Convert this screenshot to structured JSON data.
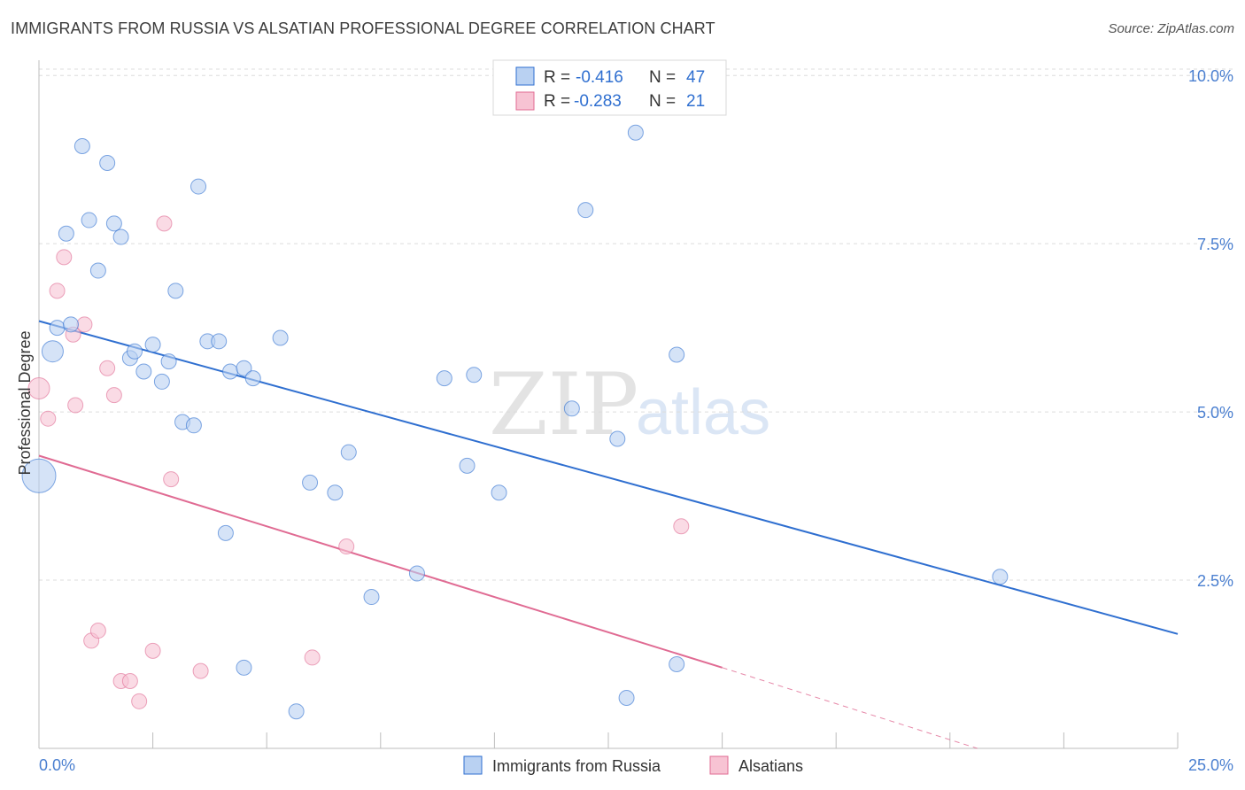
{
  "header": {
    "title": "IMMIGRANTS FROM RUSSIA VS ALSATIAN PROFESSIONAL DEGREE CORRELATION CHART",
    "source": "Source: ZipAtlas.com"
  },
  "watermark": {
    "zip": "ZIP",
    "atlas": "atlas"
  },
  "colors": {
    "russia": "#2f6fd0",
    "russia_fill": "#b9d1f2",
    "alsatian": "#e06b93",
    "alsatian_fill": "#f7c3d3",
    "tick": "#4a7fd0"
  },
  "chart_data": {
    "type": "scatter",
    "title": "IMMIGRANTS FROM RUSSIA VS ALSATIAN PROFESSIONAL DEGREE CORRELATION CHART",
    "xlabel": "",
    "ylabel": "Professional Degree",
    "xlim": [
      0,
      25
    ],
    "ylim": [
      0,
      10.2
    ],
    "x_tick_labels": [
      "0.0%",
      "25.0%"
    ],
    "y_ticks": [
      2.5,
      5.0,
      7.5,
      10.0
    ],
    "y_tick_labels": [
      "2.5%",
      "5.0%",
      "7.5%",
      "10.0%"
    ],
    "legend": [
      {
        "label_r": "R = ",
        "r": "-0.416",
        "label_n": "N = ",
        "n": "47"
      },
      {
        "label_r": "R = ",
        "r": "-0.283",
        "label_n": "N = ",
        "n": "21"
      }
    ],
    "series": [
      {
        "name": "Immigrants from Russia",
        "r": -0.416,
        "n": 47,
        "trend": {
          "x0": 0.0,
          "y0": 6.35,
          "x1": 25.0,
          "y1": 1.7
        },
        "points": [
          {
            "x": 0.0,
            "y": 4.05,
            "s": "xl"
          },
          {
            "x": 0.3,
            "y": 5.9,
            "s": "l"
          },
          {
            "x": 0.4,
            "y": 6.25
          },
          {
            "x": 0.6,
            "y": 7.65
          },
          {
            "x": 0.7,
            "y": 6.3
          },
          {
            "x": 0.95,
            "y": 8.95
          },
          {
            "x": 1.1,
            "y": 7.85
          },
          {
            "x": 1.3,
            "y": 7.1
          },
          {
            "x": 1.5,
            "y": 8.7
          },
          {
            "x": 1.65,
            "y": 7.8
          },
          {
            "x": 1.8,
            "y": 7.6
          },
          {
            "x": 2.0,
            "y": 5.8
          },
          {
            "x": 2.1,
            "y": 5.9
          },
          {
            "x": 2.3,
            "y": 5.6
          },
          {
            "x": 2.5,
            "y": 6.0
          },
          {
            "x": 2.7,
            "y": 5.45
          },
          {
            "x": 2.85,
            "y": 5.75
          },
          {
            "x": 3.0,
            "y": 6.8
          },
          {
            "x": 3.15,
            "y": 4.85
          },
          {
            "x": 3.4,
            "y": 4.8
          },
          {
            "x": 3.5,
            "y": 8.35
          },
          {
            "x": 3.7,
            "y": 6.05
          },
          {
            "x": 3.95,
            "y": 6.05
          },
          {
            "x": 4.1,
            "y": 3.2
          },
          {
            "x": 4.2,
            "y": 5.6
          },
          {
            "x": 4.5,
            "y": 5.65
          },
          {
            "x": 4.5,
            "y": 1.2
          },
          {
            "x": 4.7,
            "y": 5.5
          },
          {
            "x": 5.3,
            "y": 6.1
          },
          {
            "x": 5.65,
            "y": 0.55
          },
          {
            "x": 5.95,
            "y": 3.95
          },
          {
            "x": 6.5,
            "y": 3.8
          },
          {
            "x": 6.8,
            "y": 4.4
          },
          {
            "x": 7.3,
            "y": 2.25
          },
          {
            "x": 8.3,
            "y": 2.6
          },
          {
            "x": 8.9,
            "y": 5.5
          },
          {
            "x": 9.4,
            "y": 4.2
          },
          {
            "x": 9.55,
            "y": 5.55
          },
          {
            "x": 10.1,
            "y": 3.8
          },
          {
            "x": 11.7,
            "y": 5.05
          },
          {
            "x": 12.0,
            "y": 8.0
          },
          {
            "x": 12.7,
            "y": 4.6
          },
          {
            "x": 12.9,
            "y": 0.75
          },
          {
            "x": 13.1,
            "y": 9.15
          },
          {
            "x": 14.0,
            "y": 1.25
          },
          {
            "x": 14.0,
            "y": 5.85
          },
          {
            "x": 21.1,
            "y": 2.55
          }
        ]
      },
      {
        "name": "Alsatians",
        "r": -0.283,
        "n": 21,
        "trend": {
          "x0": 0.0,
          "y0": 4.35,
          "x1": 15.0,
          "y1": 1.2,
          "dash_x1": 20.6,
          "dash_y1": 0.0
        },
        "points": [
          {
            "x": 0.0,
            "y": 5.35,
            "s": "l"
          },
          {
            "x": 0.2,
            "y": 4.9
          },
          {
            "x": 0.4,
            "y": 6.8
          },
          {
            "x": 0.55,
            "y": 7.3
          },
          {
            "x": 0.75,
            "y": 6.15
          },
          {
            "x": 0.8,
            "y": 5.1
          },
          {
            "x": 1.0,
            "y": 6.3
          },
          {
            "x": 1.15,
            "y": 1.6
          },
          {
            "x": 1.3,
            "y": 1.75
          },
          {
            "x": 1.5,
            "y": 5.65
          },
          {
            "x": 1.65,
            "y": 5.25
          },
          {
            "x": 1.8,
            "y": 1.0
          },
          {
            "x": 2.0,
            "y": 1.0
          },
          {
            "x": 2.2,
            "y": 0.7
          },
          {
            "x": 2.5,
            "y": 1.45
          },
          {
            "x": 2.75,
            "y": 7.8
          },
          {
            "x": 2.9,
            "y": 4.0
          },
          {
            "x": 3.55,
            "y": 1.15
          },
          {
            "x": 6.0,
            "y": 1.35
          },
          {
            "x": 6.75,
            "y": 3.0
          },
          {
            "x": 14.1,
            "y": 3.3
          }
        ]
      }
    ]
  }
}
